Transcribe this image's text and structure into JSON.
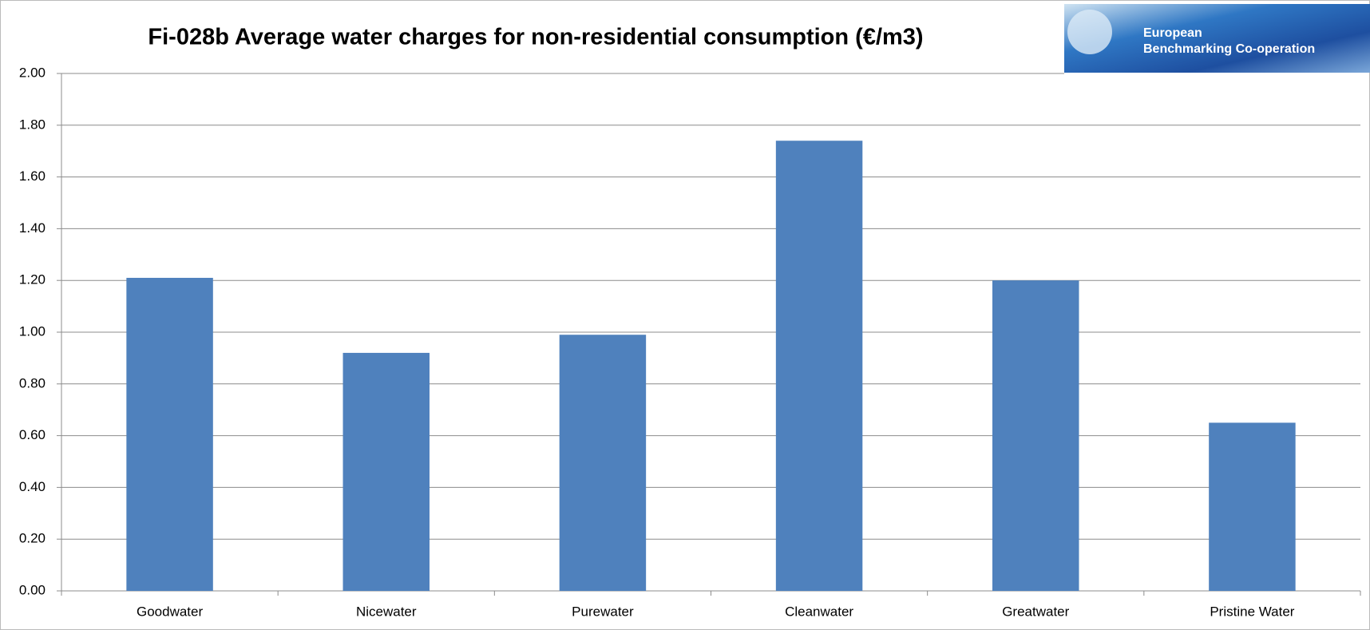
{
  "chart_data": {
    "type": "bar",
    "title": "Fi-028b Average water charges for non-residential consumption (€/m3)",
    "logo": {
      "line1": "European",
      "line2": "Benchmarking Co-operation"
    },
    "categories": [
      "Goodwater",
      "Nicewater",
      "Purewater",
      "Cleanwater",
      "Greatwater",
      "Pristine Water"
    ],
    "values": [
      1.21,
      0.92,
      0.99,
      1.74,
      1.2,
      0.65
    ],
    "color": "#4f81bd",
    "ylim": [
      0,
      2
    ],
    "yticks": [
      {
        "value": 0,
        "label": "0.00"
      },
      {
        "value": 0.2,
        "label": "0.20"
      },
      {
        "value": 0.4,
        "label": "0.40"
      },
      {
        "value": 0.6,
        "label": "0.60"
      },
      {
        "value": 0.8,
        "label": "0.80"
      },
      {
        "value": 1,
        "label": "1.00"
      },
      {
        "value": 1.2,
        "label": "1.20"
      },
      {
        "value": 1.4,
        "label": "1.40"
      },
      {
        "value": 1.6,
        "label": "1.60"
      },
      {
        "value": 1.8,
        "label": "1.80"
      },
      {
        "value": 2,
        "label": "2.00"
      }
    ],
    "grid": true
  }
}
